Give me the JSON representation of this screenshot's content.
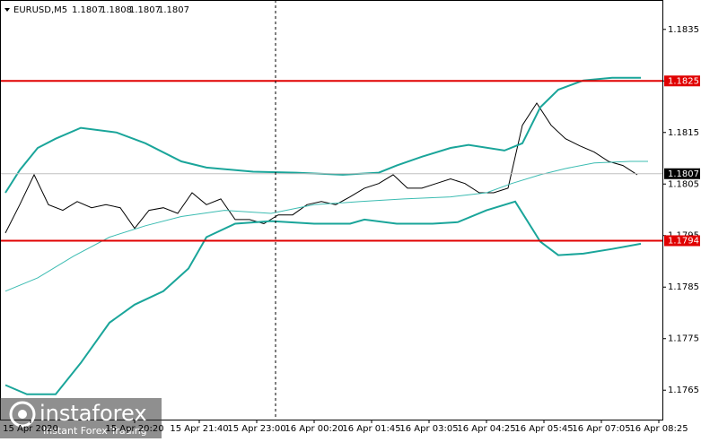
{
  "chart_data": {
    "type": "line",
    "header": {
      "symbol": "EURUSD,M5",
      "open": 1.1807,
      "high": 1.1808,
      "low": 1.1807,
      "close": 1.1807
    },
    "watermark": {
      "brand": "instaforex",
      "tagline": "Instant Forex Trading"
    },
    "xlim": [
      -1.5,
      183
    ],
    "ylim": [
      1.17593,
      1.18407
    ],
    "xticks": [
      {
        "value": 7,
        "label": "15 Apr 2020"
      },
      {
        "value": 36,
        "label": "15 Apr 20:20"
      },
      {
        "value": 54,
        "label": "15 Apr 21:40"
      },
      {
        "value": 70,
        "label": "15 Apr 23:00"
      },
      {
        "value": 86,
        "label": "16 Apr 00:20"
      },
      {
        "value": 102,
        "label": "16 Apr 01:45"
      },
      {
        "value": 118,
        "label": "16 Apr 03:05"
      },
      {
        "value": 134,
        "label": "16 Apr 04:25"
      },
      {
        "value": 150,
        "label": "16 Apr 05:45"
      },
      {
        "value": 166,
        "label": "16 Apr 07:05"
      },
      {
        "value": 182,
        "label": "16 Apr 08:25"
      }
    ],
    "yticks": [
      1.1765,
      1.1775,
      1.1785,
      1.1795,
      1.1805,
      1.1815,
      1.1825,
      1.1835
    ],
    "hlines": [
      1.1825,
      1.1794
    ],
    "hline_color": "#e00000",
    "last_price": 1.1807,
    "series": [
      {
        "color": "#000000",
        "x": [
          0,
          4,
          8,
          12,
          16,
          20,
          24,
          28,
          32,
          36,
          40,
          44,
          48,
          52,
          56,
          60,
          64,
          68,
          72,
          76,
          80,
          84,
          88,
          92,
          96,
          100,
          104,
          108,
          112,
          116,
          120,
          124,
          128,
          132,
          136,
          140,
          144,
          148,
          152,
          156,
          160,
          164,
          168,
          172,
          176
        ],
        "values": [
          1.17955,
          1.1801,
          1.18068,
          1.1801,
          1.17999,
          1.18016,
          1.18004,
          1.1801,
          1.18004,
          1.17964,
          1.17999,
          1.18004,
          1.17993,
          1.18033,
          1.1801,
          1.18021,
          1.17981,
          1.17981,
          1.17973,
          1.1799,
          1.1799,
          1.1801,
          1.18016,
          1.1801,
          1.18025,
          1.18042,
          1.18051,
          1.18068,
          1.18042,
          1.18042,
          1.18051,
          1.1806,
          1.18051,
          1.18033,
          1.18033,
          1.18042,
          1.18164,
          1.18207,
          1.18164,
          1.18138,
          1.18124,
          1.18112,
          1.18094,
          1.18086,
          1.18068
        ]
      },
      {
        "color": "#1aa59a",
        "x": [
          0,
          4,
          9,
          14,
          21,
          31,
          39,
          49,
          56,
          69,
          81,
          94,
          104,
          109,
          116,
          124,
          129,
          139,
          144,
          149,
          154,
          161,
          169,
          177
        ],
        "values": [
          1.18033,
          1.18077,
          1.1812,
          1.18138,
          1.18159,
          1.1815,
          1.18129,
          1.18094,
          1.18082,
          1.18074,
          1.18072,
          1.18068,
          1.18072,
          1.18086,
          1.18103,
          1.1812,
          1.18126,
          1.18115,
          1.18129,
          1.18199,
          1.18233,
          1.18251,
          1.18256,
          1.18256
        ]
      },
      {
        "color": "#1aa59a",
        "x": [
          0,
          6,
          14,
          21,
          29,
          36,
          44,
          51,
          56,
          64,
          74,
          86,
          96,
          100,
          109,
          119,
          126,
          134,
          142,
          149,
          154,
          161,
          169,
          177
        ],
        "values": [
          1.1766,
          1.17642,
          1.17642,
          1.17703,
          1.17781,
          1.17816,
          1.17842,
          1.17886,
          1.17947,
          1.17973,
          1.17978,
          1.17973,
          1.17973,
          1.17981,
          1.17973,
          1.17973,
          1.17976,
          1.17999,
          1.18016,
          1.17938,
          1.17912,
          1.17915,
          1.17924,
          1.17934
        ]
      },
      {
        "color": "#3cbcb2",
        "x": [
          0,
          9,
          19,
          29,
          39,
          49,
          61,
          74,
          86,
          99,
          111,
          124,
          134,
          141,
          149,
          156,
          164,
          174,
          179
        ],
        "values": [
          1.17842,
          1.17868,
          1.1791,
          1.17947,
          1.17969,
          1.17987,
          1.17999,
          1.17993,
          1.1801,
          1.18016,
          1.18021,
          1.18025,
          1.18033,
          1.18051,
          1.18068,
          1.1808,
          1.18091,
          1.18094,
          1.18094
        ]
      }
    ]
  }
}
